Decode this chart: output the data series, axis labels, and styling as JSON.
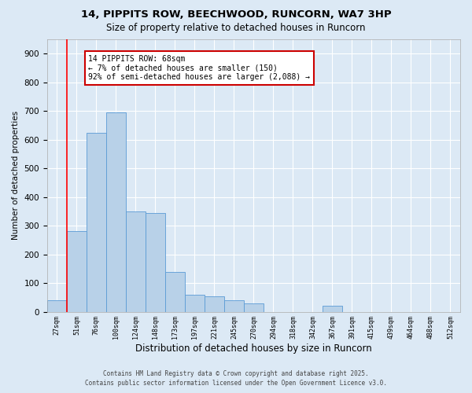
{
  "title_line1": "14, PIPPITS ROW, BEECHWOOD, RUNCORN, WA7 3HP",
  "title_line2": "Size of property relative to detached houses in Runcorn",
  "xlabel": "Distribution of detached houses by size in Runcorn",
  "ylabel": "Number of detached properties",
  "footer_line1": "Contains HM Land Registry data © Crown copyright and database right 2025.",
  "footer_line2": "Contains public sector information licensed under the Open Government Licence v3.0.",
  "bins": [
    "27sqm",
    "51sqm",
    "76sqm",
    "100sqm",
    "124sqm",
    "148sqm",
    "173sqm",
    "197sqm",
    "221sqm",
    "245sqm",
    "270sqm",
    "294sqm",
    "318sqm",
    "342sqm",
    "367sqm",
    "391sqm",
    "415sqm",
    "439sqm",
    "464sqm",
    "488sqm",
    "512sqm"
  ],
  "bar_values": [
    40,
    280,
    625,
    695,
    350,
    345,
    140,
    60,
    55,
    40,
    30,
    0,
    0,
    0,
    20,
    0,
    0,
    0,
    0,
    0,
    0
  ],
  "bar_color": "#b8d1e8",
  "bar_edge_color": "#5b9bd5",
  "background_color": "#dce9f5",
  "plot_background": "#dce9f5",
  "grid_color": "#c8d8ea",
  "red_line_index": 1,
  "annotation_text": "14 PIPPITS ROW: 68sqm\n← 7% of detached houses are smaller (150)\n92% of semi-detached houses are larger (2,088) →",
  "annotation_box_color": "#ffffff",
  "annotation_box_edge": "#cc0000",
  "ylim": [
    0,
    950
  ],
  "yticks": [
    0,
    100,
    200,
    300,
    400,
    500,
    600,
    700,
    800,
    900
  ]
}
